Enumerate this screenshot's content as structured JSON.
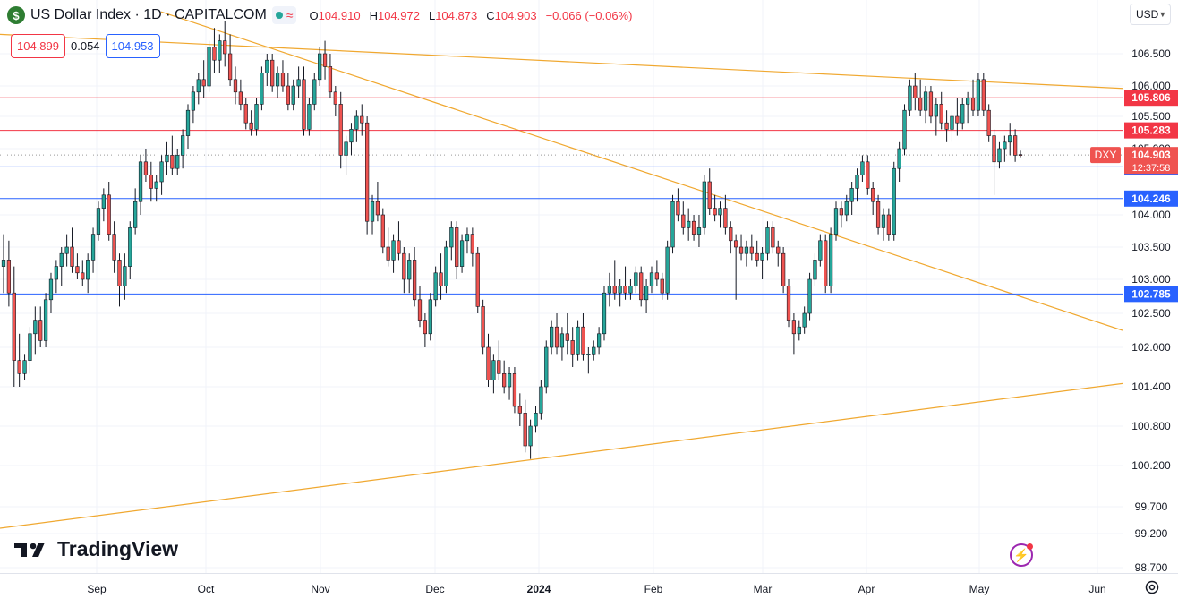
{
  "header": {
    "symbol_icon": "$",
    "title": "US Dollar Index · 1D · CAPITALCOM",
    "wave_icon": "≈",
    "ohlc": [
      {
        "k": "O",
        "v": "104.910"
      },
      {
        "k": "H",
        "v": "104.972"
      },
      {
        "k": "L",
        "v": "104.873"
      },
      {
        "k": "C",
        "v": "104.903"
      }
    ],
    "change": "−0.066 (−0.06%)"
  },
  "quote": {
    "sell": "104.899",
    "spread": "0.054",
    "buy": "104.953"
  },
  "currency": "USD",
  "logo_text": "TradingView",
  "colors": {
    "up": "#26a69a",
    "down": "#ef5350",
    "resistance": "#f23645",
    "support": "#2962ff",
    "trend": "#f0a830",
    "text": "#131722",
    "axis_text": "#131722"
  },
  "chart_data": {
    "type": "candlestick",
    "symbol_tag": "DXY",
    "last_price": "104.903",
    "countdown": "12:37:58",
    "ylim": [
      98.7,
      107.15
    ],
    "y_ticks": [
      "106.500",
      "106.000",
      "105.500",
      "105.000",
      "104.000",
      "103.500",
      "103.000",
      "102.500",
      "102.000",
      "101.400",
      "100.800",
      "100.200",
      "99.700",
      "99.200",
      "98.700"
    ],
    "x_labels": [
      "Sep",
      "Oct",
      "Nov",
      "Dec",
      "2024",
      "Feb",
      "Mar",
      "Apr",
      "May",
      "Jun"
    ],
    "horizontal_levels": [
      {
        "value": 105.806,
        "label": "105.806",
        "color": "#f23645"
      },
      {
        "value": 105.283,
        "label": "105.283",
        "color": "#f23645"
      },
      {
        "value": 104.724,
        "label": "104.724",
        "color": "#2962ff"
      },
      {
        "value": 104.246,
        "label": "104.246",
        "color": "#2962ff"
      },
      {
        "value": 102.785,
        "label": "102.785",
        "color": "#2962ff"
      }
    ],
    "candles": [
      [
        103.2,
        103.7,
        102.8,
        103.3
      ],
      [
        103.3,
        103.6,
        102.6,
        102.8
      ],
      [
        102.8,
        103.2,
        101.4,
        101.8
      ],
      [
        101.8,
        102.2,
        101.4,
        101.6
      ],
      [
        101.6,
        101.9,
        101.5,
        101.8
      ],
      [
        101.8,
        102.3,
        101.6,
        102.2
      ],
      [
        102.2,
        102.6,
        101.9,
        102.4
      ],
      [
        102.4,
        102.6,
        102.0,
        102.1
      ],
      [
        102.1,
        102.8,
        102.0,
        102.7
      ],
      [
        102.7,
        103.1,
        102.5,
        103.0
      ],
      [
        103.0,
        103.3,
        102.8,
        103.2
      ],
      [
        103.2,
        103.5,
        102.9,
        103.4
      ],
      [
        103.4,
        103.7,
        103.2,
        103.5
      ],
      [
        103.5,
        103.8,
        103.1,
        103.2
      ],
      [
        103.2,
        103.4,
        103.0,
        103.1
      ],
      [
        103.1,
        103.3,
        102.9,
        103.0
      ],
      [
        103.0,
        103.4,
        102.8,
        103.3
      ],
      [
        103.3,
        103.8,
        103.1,
        103.7
      ],
      [
        103.7,
        104.2,
        103.6,
        104.1
      ],
      [
        104.1,
        104.4,
        103.9,
        104.3
      ],
      [
        104.3,
        104.5,
        103.6,
        103.7
      ],
      [
        103.7,
        103.9,
        103.1,
        103.3
      ],
      [
        103.3,
        103.4,
        102.6,
        102.9
      ],
      [
        102.9,
        103.4,
        102.7,
        103.2
      ],
      [
        103.2,
        103.9,
        103.0,
        103.8
      ],
      [
        103.8,
        104.4,
        103.7,
        104.2
      ],
      [
        104.2,
        104.9,
        104.0,
        104.8
      ],
      [
        104.8,
        105.0,
        104.5,
        104.6
      ],
      [
        104.6,
        104.8,
        104.2,
        104.4
      ],
      [
        104.4,
        104.6,
        104.2,
        104.5
      ],
      [
        104.5,
        104.9,
        104.3,
        104.8
      ],
      [
        104.8,
        105.1,
        104.6,
        104.9
      ],
      [
        104.9,
        105.2,
        104.6,
        104.7
      ],
      [
        104.7,
        105.0,
        104.6,
        104.9
      ],
      [
        104.9,
        105.3,
        104.7,
        105.2
      ],
      [
        105.2,
        105.7,
        105.0,
        105.6
      ],
      [
        105.6,
        106.0,
        105.4,
        105.9
      ],
      [
        105.9,
        106.2,
        105.7,
        106.1
      ],
      [
        106.1,
        106.4,
        105.8,
        106.0
      ],
      [
        106.0,
        106.7,
        105.9,
        106.6
      ],
      [
        106.6,
        106.9,
        106.2,
        106.4
      ],
      [
        106.4,
        106.8,
        106.2,
        106.7
      ],
      [
        106.7,
        107.0,
        106.3,
        106.5
      ],
      [
        106.5,
        106.8,
        106.0,
        106.1
      ],
      [
        106.1,
        106.3,
        105.7,
        105.9
      ],
      [
        105.9,
        106.1,
        105.6,
        105.7
      ],
      [
        105.7,
        105.8,
        105.3,
        105.4
      ],
      [
        105.4,
        105.6,
        105.2,
        105.3
      ],
      [
        105.3,
        105.8,
        105.2,
        105.7
      ],
      [
        105.7,
        106.3,
        105.6,
        106.2
      ],
      [
        106.2,
        106.5,
        106.0,
        106.4
      ],
      [
        106.4,
        106.5,
        105.9,
        106.0
      ],
      [
        106.0,
        106.3,
        105.8,
        106.2
      ],
      [
        106.2,
        106.4,
        105.9,
        106.0
      ],
      [
        106.0,
        106.2,
        105.6,
        105.7
      ],
      [
        105.7,
        106.1,
        105.6,
        106.0
      ],
      [
        106.0,
        106.3,
        105.8,
        106.1
      ],
      [
        106.1,
        106.3,
        105.2,
        105.3
      ],
      [
        105.3,
        105.8,
        105.2,
        105.7
      ],
      [
        105.7,
        106.2,
        105.6,
        106.1
      ],
      [
        106.1,
        106.6,
        106.0,
        106.5
      ],
      [
        106.5,
        106.7,
        106.1,
        106.3
      ],
      [
        106.3,
        106.5,
        105.8,
        105.9
      ],
      [
        105.9,
        106.0,
        105.5,
        105.7
      ],
      [
        105.7,
        105.9,
        104.7,
        104.9
      ],
      [
        104.9,
        105.2,
        104.6,
        105.1
      ],
      [
        105.1,
        105.4,
        104.9,
        105.3
      ],
      [
        105.3,
        105.6,
        105.1,
        105.5
      ],
      [
        105.5,
        105.7,
        105.2,
        105.4
      ],
      [
        105.4,
        105.5,
        103.7,
        103.9
      ],
      [
        103.9,
        104.3,
        103.7,
        104.2
      ],
      [
        104.2,
        104.5,
        103.9,
        104.0
      ],
      [
        104.0,
        104.1,
        103.4,
        103.5
      ],
      [
        103.5,
        103.8,
        103.2,
        103.3
      ],
      [
        103.3,
        103.7,
        103.1,
        103.6
      ],
      [
        103.6,
        103.9,
        103.3,
        103.4
      ],
      [
        103.4,
        103.5,
        102.8,
        103.0
      ],
      [
        103.0,
        103.4,
        102.8,
        103.3
      ],
      [
        103.3,
        103.5,
        102.6,
        102.7
      ],
      [
        102.7,
        102.9,
        102.3,
        102.4
      ],
      [
        102.4,
        102.5,
        102.0,
        102.2
      ],
      [
        102.2,
        102.8,
        102.1,
        102.7
      ],
      [
        102.7,
        103.2,
        102.6,
        103.1
      ],
      [
        103.1,
        103.4,
        102.7,
        102.9
      ],
      [
        102.9,
        103.6,
        102.8,
        103.5
      ],
      [
        103.5,
        103.9,
        103.3,
        103.8
      ],
      [
        103.8,
        103.9,
        103.0,
        103.2
      ],
      [
        103.2,
        103.7,
        103.1,
        103.6
      ],
      [
        103.6,
        103.8,
        103.4,
        103.7
      ],
      [
        103.7,
        103.8,
        103.2,
        103.4
      ],
      [
        103.4,
        103.5,
        102.5,
        102.6
      ],
      [
        102.6,
        102.7,
        101.9,
        102.0
      ],
      [
        102.0,
        102.2,
        101.4,
        101.5
      ],
      [
        101.5,
        101.9,
        101.3,
        101.8
      ],
      [
        101.8,
        102.1,
        101.5,
        101.6
      ],
      [
        101.6,
        101.8,
        101.3,
        101.4
      ],
      [
        101.4,
        101.7,
        101.2,
        101.6
      ],
      [
        101.6,
        101.7,
        101.0,
        101.1
      ],
      [
        101.1,
        101.3,
        100.8,
        101.0
      ],
      [
        101.0,
        101.2,
        100.4,
        100.5
      ],
      [
        100.5,
        100.9,
        100.3,
        100.8
      ],
      [
        100.8,
        101.1,
        100.7,
        101.0
      ],
      [
        101.0,
        101.5,
        100.9,
        101.4
      ],
      [
        101.4,
        102.1,
        101.3,
        102.0
      ],
      [
        102.0,
        102.4,
        101.9,
        102.3
      ],
      [
        102.3,
        102.5,
        101.9,
        102.0
      ],
      [
        102.0,
        102.3,
        101.8,
        102.2
      ],
      [
        102.2,
        102.5,
        101.9,
        102.1
      ],
      [
        102.1,
        102.3,
        101.7,
        101.9
      ],
      [
        101.9,
        102.4,
        101.8,
        102.3
      ],
      [
        102.3,
        102.5,
        101.8,
        101.9
      ],
      [
        101.9,
        102.0,
        101.6,
        101.9
      ],
      [
        101.9,
        102.1,
        101.8,
        102.0
      ],
      [
        102.0,
        102.3,
        101.9,
        102.2
      ],
      [
        102.2,
        102.9,
        102.1,
        102.8
      ],
      [
        102.8,
        103.1,
        102.6,
        102.9
      ],
      [
        102.9,
        103.3,
        102.7,
        102.8
      ],
      [
        102.8,
        103.0,
        102.6,
        102.9
      ],
      [
        102.9,
        103.2,
        102.7,
        102.8
      ],
      [
        102.8,
        103.0,
        102.7,
        102.9
      ],
      [
        102.9,
        103.2,
        102.8,
        103.1
      ],
      [
        103.1,
        103.2,
        102.6,
        102.7
      ],
      [
        102.7,
        103.0,
        102.5,
        102.9
      ],
      [
        102.9,
        103.2,
        102.8,
        103.1
      ],
      [
        103.1,
        103.3,
        102.9,
        103.0
      ],
      [
        103.0,
        103.1,
        102.7,
        102.8
      ],
      [
        102.8,
        103.6,
        102.7,
        103.5
      ],
      [
        103.5,
        104.3,
        103.4,
        104.2
      ],
      [
        104.2,
        104.4,
        103.9,
        104.0
      ],
      [
        104.0,
        104.2,
        103.7,
        103.8
      ],
      [
        103.8,
        104.1,
        103.6,
        103.9
      ],
      [
        103.9,
        104.0,
        103.6,
        103.7
      ],
      [
        103.7,
        104.0,
        103.5,
        103.8
      ],
      [
        103.8,
        104.6,
        103.7,
        104.5
      ],
      [
        104.5,
        104.7,
        104.0,
        104.1
      ],
      [
        104.1,
        104.3,
        103.9,
        104.0
      ],
      [
        104.0,
        104.2,
        103.8,
        104.1
      ],
      [
        104.1,
        104.3,
        103.7,
        103.8
      ],
      [
        103.8,
        103.9,
        103.4,
        103.6
      ],
      [
        103.6,
        103.7,
        102.7,
        103.5
      ],
      [
        103.5,
        103.7,
        103.3,
        103.4
      ],
      [
        103.4,
        103.6,
        103.2,
        103.5
      ],
      [
        103.5,
        103.7,
        103.3,
        103.4
      ],
      [
        103.4,
        103.6,
        103.2,
        103.3
      ],
      [
        103.3,
        103.5,
        103.0,
        103.4
      ],
      [
        103.4,
        103.9,
        103.3,
        103.8
      ],
      [
        103.8,
        103.9,
        103.4,
        103.5
      ],
      [
        103.5,
        103.6,
        103.2,
        103.4
      ],
      [
        103.4,
        103.5,
        102.8,
        102.9
      ],
      [
        102.9,
        103.0,
        102.3,
        102.4
      ],
      [
        102.4,
        102.5,
        101.9,
        102.2
      ],
      [
        102.2,
        102.4,
        102.1,
        102.3
      ],
      [
        102.3,
        102.6,
        102.2,
        102.5
      ],
      [
        102.5,
        103.1,
        102.4,
        103.0
      ],
      [
        103.0,
        103.4,
        102.9,
        103.3
      ],
      [
        103.3,
        103.7,
        103.2,
        103.6
      ],
      [
        103.6,
        103.7,
        102.8,
        102.9
      ],
      [
        102.9,
        103.8,
        102.8,
        103.7
      ],
      [
        103.7,
        104.2,
        103.6,
        104.1
      ],
      [
        104.1,
        104.2,
        103.8,
        104.0
      ],
      [
        104.0,
        104.3,
        103.9,
        104.2
      ],
      [
        104.2,
        104.5,
        104.0,
        104.4
      ],
      [
        104.4,
        104.7,
        104.2,
        104.6
      ],
      [
        104.6,
        104.9,
        104.5,
        104.8
      ],
      [
        104.8,
        104.9,
        104.3,
        104.4
      ],
      [
        104.4,
        104.5,
        104.0,
        104.2
      ],
      [
        104.2,
        104.3,
        103.7,
        103.8
      ],
      [
        103.8,
        104.1,
        103.6,
        104.0
      ],
      [
        104.0,
        104.1,
        103.6,
        103.7
      ],
      [
        103.7,
        104.8,
        103.6,
        104.7
      ],
      [
        104.7,
        105.1,
        104.5,
        105.0
      ],
      [
        105.0,
        105.7,
        104.9,
        105.6
      ],
      [
        105.6,
        106.1,
        105.5,
        106.0
      ],
      [
        106.0,
        106.2,
        105.6,
        105.8
      ],
      [
        105.8,
        106.1,
        105.5,
        105.6
      ],
      [
        105.6,
        106.0,
        105.4,
        105.9
      ],
      [
        105.9,
        106.0,
        105.4,
        105.5
      ],
      [
        105.5,
        105.8,
        105.2,
        105.7
      ],
      [
        105.7,
        105.9,
        105.3,
        105.4
      ],
      [
        105.4,
        105.6,
        105.1,
        105.3
      ],
      [
        105.3,
        105.6,
        105.1,
        105.5
      ],
      [
        105.5,
        105.8,
        105.2,
        105.4
      ],
      [
        105.4,
        105.8,
        105.3,
        105.7
      ],
      [
        105.7,
        105.9,
        105.4,
        105.8
      ],
      [
        105.8,
        106.1,
        105.5,
        105.6
      ],
      [
        105.6,
        106.2,
        105.5,
        106.1
      ],
      [
        106.1,
        106.2,
        105.5,
        105.6
      ],
      [
        105.6,
        105.7,
        105.1,
        105.2
      ],
      [
        105.2,
        105.3,
        104.3,
        104.8
      ],
      [
        104.8,
        105.1,
        104.7,
        105.0
      ],
      [
        105.0,
        105.2,
        104.8,
        105.1
      ],
      [
        105.1,
        105.4,
        104.9,
        105.2
      ],
      [
        105.2,
        105.3,
        104.8,
        104.9
      ],
      [
        104.91,
        104.97,
        104.87,
        104.9
      ]
    ],
    "trendlines": [
      {
        "from": [
          0,
          106.8
        ],
        "to": [
          1254,
          105.96
        ],
        "color": "#f0a830"
      },
      {
        "from": [
          180,
          107.15
        ],
        "to": [
          1254,
          102.25
        ],
        "color": "#f0a830"
      },
      {
        "from": [
          0,
          99.3
        ],
        "to": [
          1254,
          101.45
        ],
        "color": "#f0a830"
      }
    ]
  }
}
